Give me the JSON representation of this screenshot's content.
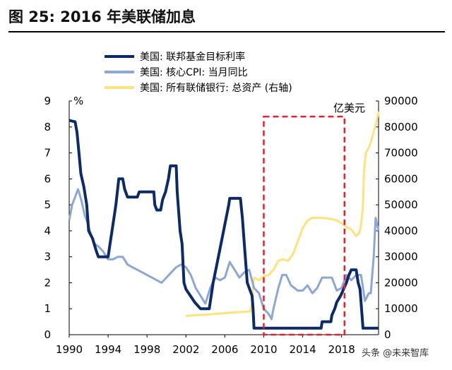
{
  "figure": {
    "title": "图 25:  2016 年美联储加息"
  },
  "watermark": "头条 @未来智库",
  "chart_data": {
    "type": "line",
    "y_left": {
      "label": "%",
      "ylim": [
        0,
        9
      ],
      "ticks": [
        0,
        1,
        2,
        3,
        4,
        5,
        6,
        7,
        8,
        9
      ]
    },
    "y_right": {
      "label": "亿美元",
      "ylim": [
        0,
        90000
      ],
      "ticks": [
        0,
        10000,
        20000,
        30000,
        40000,
        50000,
        60000,
        70000,
        80000,
        90000
      ]
    },
    "x_axis": {
      "xlim": [
        1990,
        2021.8
      ],
      "ticks": [
        1990,
        1994,
        1998,
        2002,
        2006,
        2010,
        2014,
        2018
      ]
    },
    "legend_position": "top",
    "highlight_box": {
      "x_range": [
        2010.0,
        2018.3
      ],
      "y_range": [
        0,
        8.4
      ],
      "style": "red-dashed"
    },
    "series": [
      {
        "name": "美国: 联邦基金目标利率",
        "axis": "left",
        "color": "#0b2a6b",
        "points": [
          [
            1990.0,
            8.25
          ],
          [
            1990.6,
            8.2
          ],
          [
            1990.8,
            7.8
          ],
          [
            1991.0,
            7.0
          ],
          [
            1991.2,
            6.2
          ],
          [
            1991.5,
            5.7
          ],
          [
            1991.8,
            5.0
          ],
          [
            1992.0,
            4.0
          ],
          [
            1992.4,
            3.7
          ],
          [
            1992.8,
            3.2
          ],
          [
            1993.0,
            3.0
          ],
          [
            1994.0,
            3.0
          ],
          [
            1994.2,
            3.5
          ],
          [
            1994.4,
            4.0
          ],
          [
            1994.8,
            5.0
          ],
          [
            1995.1,
            6.0
          ],
          [
            1995.5,
            6.0
          ],
          [
            1995.7,
            5.6
          ],
          [
            1996.0,
            5.3
          ],
          [
            1997.0,
            5.3
          ],
          [
            1997.2,
            5.5
          ],
          [
            1998.7,
            5.5
          ],
          [
            1998.8,
            5.0
          ],
          [
            1999.0,
            4.8
          ],
          [
            1999.4,
            4.8
          ],
          [
            1999.6,
            5.2
          ],
          [
            1999.9,
            5.5
          ],
          [
            2000.2,
            6.0
          ],
          [
            2000.4,
            6.5
          ],
          [
            2001.0,
            6.5
          ],
          [
            2001.1,
            5.5
          ],
          [
            2001.4,
            4.0
          ],
          [
            2001.6,
            3.5
          ],
          [
            2001.8,
            2.0
          ],
          [
            2002.0,
            1.75
          ],
          [
            2002.9,
            1.25
          ],
          [
            2003.5,
            1.0
          ],
          [
            2004.4,
            1.0
          ],
          [
            2004.8,
            2.0
          ],
          [
            2005.2,
            2.75
          ],
          [
            2005.6,
            3.5
          ],
          [
            2006.0,
            4.25
          ],
          [
            2006.4,
            5.0
          ],
          [
            2006.5,
            5.25
          ],
          [
            2007.6,
            5.25
          ],
          [
            2007.8,
            4.5
          ],
          [
            2008.1,
            3.0
          ],
          [
            2008.3,
            2.0
          ],
          [
            2008.8,
            1.5
          ],
          [
            2008.9,
            1.0
          ],
          [
            2009.0,
            0.25
          ],
          [
            2015.9,
            0.25
          ],
          [
            2016.0,
            0.5
          ],
          [
            2016.9,
            0.5
          ],
          [
            2017.0,
            0.75
          ],
          [
            2017.3,
            1.0
          ],
          [
            2017.5,
            1.25
          ],
          [
            2017.9,
            1.5
          ],
          [
            2018.2,
            1.75
          ],
          [
            2018.5,
            2.0
          ],
          [
            2018.7,
            2.25
          ],
          [
            2019.0,
            2.5
          ],
          [
            2019.5,
            2.5
          ],
          [
            2019.7,
            2.0
          ],
          [
            2019.9,
            1.75
          ],
          [
            2020.2,
            0.25
          ],
          [
            2021.8,
            0.25
          ]
        ]
      },
      {
        "name": "美国: 核心CPI: 当月同比",
        "axis": "left",
        "color": "#8aa7d6",
        "points": [
          [
            1990.0,
            4.4
          ],
          [
            1990.3,
            5.0
          ],
          [
            1990.6,
            5.3
          ],
          [
            1990.9,
            5.6
          ],
          [
            1991.0,
            5.5
          ],
          [
            1991.3,
            5.1
          ],
          [
            1991.6,
            4.6
          ],
          [
            1991.9,
            4.3
          ],
          [
            1992.2,
            3.9
          ],
          [
            1992.6,
            3.5
          ],
          [
            1993.0,
            3.4
          ],
          [
            1993.5,
            3.2
          ],
          [
            1994.0,
            2.9
          ],
          [
            1994.5,
            2.9
          ],
          [
            1995.0,
            3.0
          ],
          [
            1995.5,
            3.0
          ],
          [
            1996.0,
            2.7
          ],
          [
            1996.5,
            2.6
          ],
          [
            1997.0,
            2.5
          ],
          [
            1997.5,
            2.4
          ],
          [
            1998.0,
            2.3
          ],
          [
            1998.5,
            2.2
          ],
          [
            1999.0,
            2.1
          ],
          [
            1999.5,
            2.0
          ],
          [
            2000.0,
            2.2
          ],
          [
            2000.5,
            2.4
          ],
          [
            2001.0,
            2.6
          ],
          [
            2001.5,
            2.7
          ],
          [
            2002.0,
            2.6
          ],
          [
            2002.5,
            2.3
          ],
          [
            2003.0,
            1.8
          ],
          [
            2003.5,
            1.5
          ],
          [
            2004.0,
            1.2
          ],
          [
            2004.5,
            1.8
          ],
          [
            2005.0,
            2.2
          ],
          [
            2005.5,
            2.1
          ],
          [
            2006.0,
            2.2
          ],
          [
            2006.5,
            2.8
          ],
          [
            2007.0,
            2.5
          ],
          [
            2007.5,
            2.2
          ],
          [
            2008.0,
            2.4
          ],
          [
            2008.5,
            2.5
          ],
          [
            2009.0,
            1.8
          ],
          [
            2009.5,
            1.6
          ],
          [
            2010.0,
            1.0
          ],
          [
            2010.5,
            0.8
          ],
          [
            2010.8,
            0.6
          ],
          [
            2011.0,
            1.0
          ],
          [
            2011.5,
            1.8
          ],
          [
            2011.9,
            2.3
          ],
          [
            2012.3,
            2.3
          ],
          [
            2012.8,
            1.9
          ],
          [
            2013.5,
            1.7
          ],
          [
            2014.0,
            1.7
          ],
          [
            2014.5,
            1.9
          ],
          [
            2015.0,
            1.6
          ],
          [
            2015.5,
            1.8
          ],
          [
            2016.0,
            2.2
          ],
          [
            2016.5,
            2.2
          ],
          [
            2017.0,
            2.2
          ],
          [
            2017.5,
            1.7
          ],
          [
            2018.0,
            1.8
          ],
          [
            2018.5,
            2.3
          ],
          [
            2019.0,
            2.1
          ],
          [
            2019.5,
            2.3
          ],
          [
            2020.0,
            2.3
          ],
          [
            2020.4,
            1.3
          ],
          [
            2020.8,
            1.6
          ],
          [
            2021.0,
            1.6
          ],
          [
            2021.3,
            3.0
          ],
          [
            2021.5,
            4.5
          ],
          [
            2021.8,
            4.0
          ]
        ]
      },
      {
        "name": "美国: 所有联储银行: 总资产 (右轴)",
        "axis": "right",
        "color": "#ffe27a",
        "points": [
          [
            2002.0,
            7200
          ],
          [
            2003.0,
            7500
          ],
          [
            2004.0,
            7700
          ],
          [
            2005.0,
            8000
          ],
          [
            2006.0,
            8300
          ],
          [
            2007.0,
            8600
          ],
          [
            2008.0,
            8800
          ],
          [
            2008.6,
            9000
          ],
          [
            2008.8,
            12000
          ],
          [
            2008.9,
            19000
          ],
          [
            2009.0,
            22000
          ],
          [
            2009.5,
            21000
          ],
          [
            2010.0,
            22500
          ],
          [
            2010.5,
            23000
          ],
          [
            2011.0,
            25000
          ],
          [
            2011.5,
            28500
          ],
          [
            2012.0,
            29000
          ],
          [
            2012.5,
            28500
          ],
          [
            2013.0,
            31000
          ],
          [
            2013.5,
            36000
          ],
          [
            2014.0,
            41000
          ],
          [
            2014.5,
            44000
          ],
          [
            2015.0,
            45000
          ],
          [
            2016.0,
            45000
          ],
          [
            2017.0,
            44500
          ],
          [
            2017.5,
            44000
          ],
          [
            2018.0,
            43000
          ],
          [
            2018.5,
            41500
          ],
          [
            2019.0,
            40500
          ],
          [
            2019.5,
            38000
          ],
          [
            2019.8,
            39000
          ],
          [
            2020.0,
            42000
          ],
          [
            2020.2,
            50000
          ],
          [
            2020.3,
            63000
          ],
          [
            2020.5,
            70000
          ],
          [
            2020.8,
            72000
          ],
          [
            2021.0,
            74000
          ],
          [
            2021.3,
            78000
          ],
          [
            2021.6,
            82000
          ],
          [
            2021.8,
            86000
          ]
        ]
      }
    ]
  }
}
